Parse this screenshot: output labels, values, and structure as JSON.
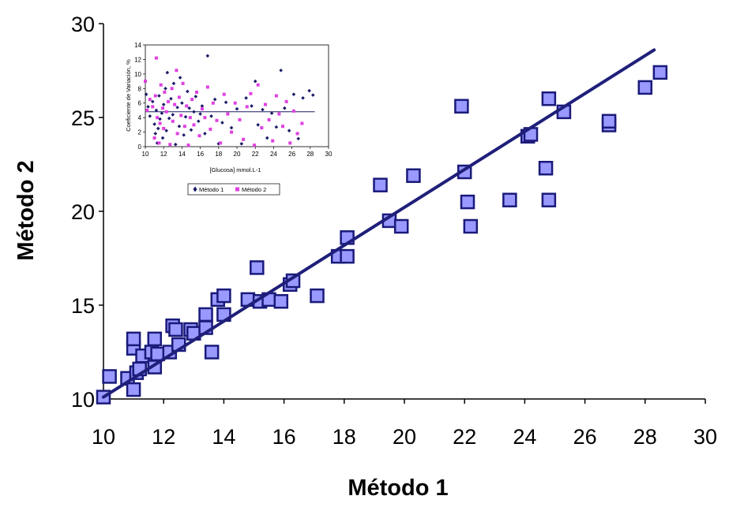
{
  "chart_data": [
    {
      "type": "scatter",
      "xlabel": "Método 1",
      "ylabel": "Método 2",
      "xlim": [
        10,
        30
      ],
      "ylim": [
        10,
        30
      ],
      "x_ticks": [
        "10",
        "12",
        "14",
        "16",
        "18",
        "20",
        "22",
        "24",
        "26",
        "28",
        "30"
      ],
      "y_ticks": [
        "10",
        "15",
        "20",
        "25",
        "30"
      ],
      "grid": false,
      "colors": {
        "marker_fill": "#9999ff",
        "marker_edge": "#1a1a7a",
        "line": "#1f1f7a"
      },
      "series": [
        {
          "points": [
            [
              10.0,
              10.1
            ],
            [
              10.2,
              11.2
            ],
            [
              10.8,
              11.1
            ],
            [
              11.0,
              10.5
            ],
            [
              11.0,
              12.7
            ],
            [
              11.0,
              13.2
            ],
            [
              11.1,
              11.4
            ],
            [
              11.2,
              11.6
            ],
            [
              11.3,
              12.3
            ],
            [
              11.6,
              12.5
            ],
            [
              11.7,
              11.7
            ],
            [
              11.7,
              13.2
            ],
            [
              11.8,
              12.4
            ],
            [
              12.2,
              12.5
            ],
            [
              12.3,
              13.9
            ],
            [
              12.4,
              13.7
            ],
            [
              12.5,
              12.9
            ],
            [
              12.9,
              13.7
            ],
            [
              13.0,
              13.5
            ],
            [
              13.4,
              13.8
            ],
            [
              13.4,
              14.5
            ],
            [
              13.6,
              12.5
            ],
            [
              13.8,
              15.3
            ],
            [
              14.0,
              14.5
            ],
            [
              14.0,
              15.5
            ],
            [
              14.8,
              15.3
            ],
            [
              15.1,
              17.0
            ],
            [
              15.2,
              15.2
            ],
            [
              15.5,
              15.3
            ],
            [
              15.9,
              15.2
            ],
            [
              16.2,
              16.1
            ],
            [
              16.3,
              16.3
            ],
            [
              17.1,
              15.5
            ],
            [
              17.8,
              17.6
            ],
            [
              18.1,
              17.6
            ],
            [
              18.1,
              18.6
            ],
            [
              19.2,
              21.4
            ],
            [
              19.5,
              19.5
            ],
            [
              19.9,
              19.2
            ],
            [
              20.3,
              21.9
            ],
            [
              21.9,
              25.6
            ],
            [
              22.0,
              22.1
            ],
            [
              22.1,
              20.5
            ],
            [
              22.2,
              19.2
            ],
            [
              23.5,
              20.6
            ],
            [
              24.1,
              24.0
            ],
            [
              24.2,
              24.1
            ],
            [
              24.7,
              22.3
            ],
            [
              24.8,
              26.0
            ],
            [
              24.8,
              20.6
            ],
            [
              25.3,
              25.3
            ],
            [
              26.8,
              24.6
            ],
            [
              26.8,
              24.8
            ],
            [
              28.0,
              26.6
            ],
            [
              28.5,
              27.4
            ]
          ]
        }
      ],
      "trendline": {
        "from": [
          10.0,
          10.1
        ],
        "to": [
          28.3,
          28.6
        ]
      }
    },
    {
      "type": "scatter",
      "xlabel": "[Glucosa] mmol.L-1",
      "ylabel": "Coeficiente de Variación, %",
      "xlim": [
        10,
        30
      ],
      "ylim": [
        0,
        14
      ],
      "x_ticks": [
        "10",
        "12",
        "14",
        "16",
        "18",
        "20",
        "22",
        "24",
        "26",
        "28",
        "30"
      ],
      "y_ticks": [
        "0",
        "2",
        "4",
        "6",
        "8",
        "10",
        "12",
        "14"
      ],
      "legend": "bottom",
      "reference_line": {
        "y": 4.8,
        "from_x": 10,
        "to_x": 28.5
      },
      "series": [
        {
          "name": "Método 1",
          "color": "#1a1a66",
          "marker": "diamond",
          "points": [
            [
              10.1,
              7.2
            ],
            [
              10.3,
              5.5
            ],
            [
              10.5,
              4.2
            ],
            [
              10.8,
              6.2
            ],
            [
              11.0,
              3.1
            ],
            [
              11.1,
              1.8
            ],
            [
              11.2,
              5.0
            ],
            [
              11.3,
              0.5
            ],
            [
              11.4,
              2.5
            ],
            [
              11.5,
              7.0
            ],
            [
              11.6,
              3.8
            ],
            [
              11.8,
              4.6
            ],
            [
              11.9,
              1.2
            ],
            [
              12.0,
              5.8
            ],
            [
              12.2,
              8.0
            ],
            [
              12.3,
              2.2
            ],
            [
              12.4,
              10.2
            ],
            [
              12.6,
              3.9
            ],
            [
              12.8,
              6.6
            ],
            [
              13.0,
              4.4
            ],
            [
              13.1,
              8.7
            ],
            [
              13.3,
              0.3
            ],
            [
              13.5,
              5.4
            ],
            [
              13.7,
              2.8
            ],
            [
              13.8,
              9.5
            ],
            [
              14.0,
              6.0
            ],
            [
              14.2,
              1.6
            ],
            [
              14.4,
              4.1
            ],
            [
              14.6,
              7.6
            ],
            [
              14.8,
              5.3
            ],
            [
              15.0,
              2.3
            ],
            [
              15.3,
              4.8
            ],
            [
              15.5,
              6.9
            ],
            [
              15.8,
              3.5
            ],
            [
              16.0,
              4.5
            ],
            [
              16.2,
              5.6
            ],
            [
              16.5,
              1.8
            ],
            [
              16.8,
              12.5
            ],
            [
              17.2,
              4.2
            ],
            [
              17.6,
              6.5
            ],
            [
              18.0,
              0.4
            ],
            [
              18.4,
              3.3
            ],
            [
              18.8,
              6.1
            ],
            [
              19.4,
              2.6
            ],
            [
              20.0,
              5.2
            ],
            [
              20.5,
              0.4
            ],
            [
              21.0,
              6.7
            ],
            [
              21.6,
              5.6
            ],
            [
              22.0,
              9.0
            ],
            [
              22.3,
              3.0
            ],
            [
              22.8,
              5.1
            ],
            [
              23.3,
              1.2
            ],
            [
              23.8,
              4.6
            ],
            [
              24.3,
              2.7
            ],
            [
              24.8,
              10.5
            ],
            [
              25.2,
              5.3
            ],
            [
              25.7,
              2.2
            ],
            [
              26.2,
              7.2
            ],
            [
              26.7,
              1.1
            ],
            [
              27.2,
              6.7
            ],
            [
              27.9,
              7.7
            ],
            [
              28.3,
              7.1
            ]
          ]
        },
        {
          "name": "Método 2",
          "color": "#e040e0",
          "marker": "square",
          "points": [
            [
              10.0,
              9.0
            ],
            [
              10.2,
              5.0
            ],
            [
              10.5,
              6.5
            ],
            [
              10.8,
              5.5
            ],
            [
              11.0,
              1.2
            ],
            [
              11.1,
              7.0
            ],
            [
              11.2,
              12.2
            ],
            [
              11.3,
              4.0
            ],
            [
              11.5,
              0.5
            ],
            [
              11.6,
              3.2
            ],
            [
              11.7,
              8.5
            ],
            [
              11.9,
              5.3
            ],
            [
              12.0,
              2.5
            ],
            [
              12.1,
              7.5
            ],
            [
              12.3,
              4.8
            ],
            [
              12.5,
              6.2
            ],
            [
              12.7,
              0.3
            ],
            [
              12.9,
              8.0
            ],
            [
              13.0,
              3.5
            ],
            [
              13.2,
              5.8
            ],
            [
              13.4,
              10.5
            ],
            [
              13.5,
              1.8
            ],
            [
              13.7,
              6.8
            ],
            [
              13.9,
              4.3
            ],
            [
              14.1,
              8.7
            ],
            [
              14.3,
              2.8
            ],
            [
              14.5,
              5.6
            ],
            [
              14.7,
              0.2
            ],
            [
              14.9,
              4.0
            ],
            [
              15.1,
              6.5
            ],
            [
              15.3,
              3.0
            ],
            [
              15.6,
              7.5
            ],
            [
              15.9,
              1.5
            ],
            [
              16.2,
              5.2
            ],
            [
              16.5,
              4.0
            ],
            [
              16.8,
              8.2
            ],
            [
              17.1,
              2.4
            ],
            [
              17.4,
              6.0
            ],
            [
              17.8,
              3.6
            ],
            [
              18.2,
              0.5
            ],
            [
              18.6,
              7.2
            ],
            [
              19.0,
              4.5
            ],
            [
              19.4,
              2.0
            ],
            [
              19.8,
              6.0
            ],
            [
              20.3,
              3.7
            ],
            [
              20.7,
              1.0
            ],
            [
              21.1,
              5.5
            ],
            [
              21.5,
              7.3
            ],
            [
              21.9,
              0.2
            ],
            [
              22.3,
              8.5
            ],
            [
              22.7,
              2.6
            ],
            [
              23.1,
              5.8
            ],
            [
              23.5,
              3.7
            ],
            [
              23.9,
              0.8
            ],
            [
              24.3,
              7.0
            ],
            [
              24.6,
              4.5
            ],
            [
              25.0,
              2.8
            ],
            [
              25.4,
              6.2
            ],
            [
              25.8,
              0.5
            ],
            [
              26.2,
              4.9
            ],
            [
              26.6,
              1.8
            ],
            [
              27.1,
              3.2
            ]
          ]
        }
      ]
    }
  ]
}
